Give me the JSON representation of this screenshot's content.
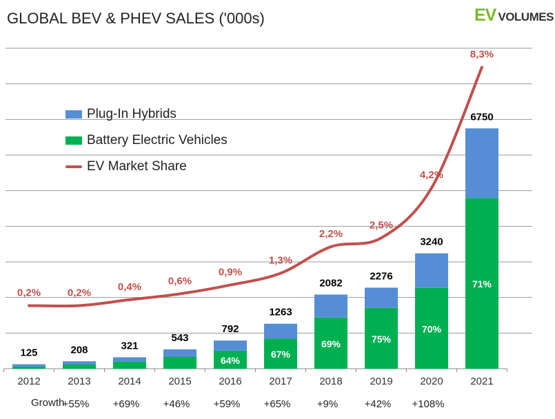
{
  "chart_data": {
    "type": "bar",
    "stacked": true,
    "title": "GLOBAL BEV & PHEV SALES ('000s)",
    "categories": [
      "2012",
      "2013",
      "2014",
      "2015",
      "2016",
      "2017",
      "2018",
      "2019",
      "2020",
      "2021"
    ],
    "totals": [
      125,
      208,
      321,
      543,
      792,
      1263,
      2082,
      2276,
      3240,
      6750
    ],
    "series": [
      {
        "name": "Battery Electric Vehicles",
        "color": "#00b050",
        "values": [
          60,
          116,
          200,
          329,
          507,
          846,
          1437,
          1707,
          2268,
          4793
        ]
      },
      {
        "name": "Plug-In Hybrids",
        "color": "#558ed5",
        "values": [
          65,
          92,
          121,
          214,
          285,
          417,
          645,
          569,
          972,
          1957
        ]
      }
    ],
    "bev_share_labels": [
      null,
      null,
      null,
      null,
      "64%",
      "67%",
      "69%",
      "75%",
      "70%",
      "71%"
    ],
    "line_series": {
      "name": "EV Market Share",
      "color": "#c0504d",
      "values": [
        0.2,
        0.2,
        0.4,
        0.6,
        0.9,
        1.3,
        2.2,
        2.5,
        4.2,
        8.3
      ],
      "labels": [
        "0,2%",
        "0,2%",
        "0,4%",
        "0,6%",
        "0,9%",
        "1,3%",
        "2,2%",
        "2,5%",
        "4,2%",
        "8,3%"
      ]
    },
    "growth_label": "Growth",
    "growth": [
      "+55%",
      "+69%",
      "+46%",
      "+59%",
      "+65%",
      "+9%",
      "+42%",
      "+108%"
    ],
    "ylim": [
      0,
      9000
    ],
    "grid": true,
    "legend_position": "top-left"
  },
  "logo": {
    "ev": "EV",
    "volumes": "VOLUMES"
  }
}
